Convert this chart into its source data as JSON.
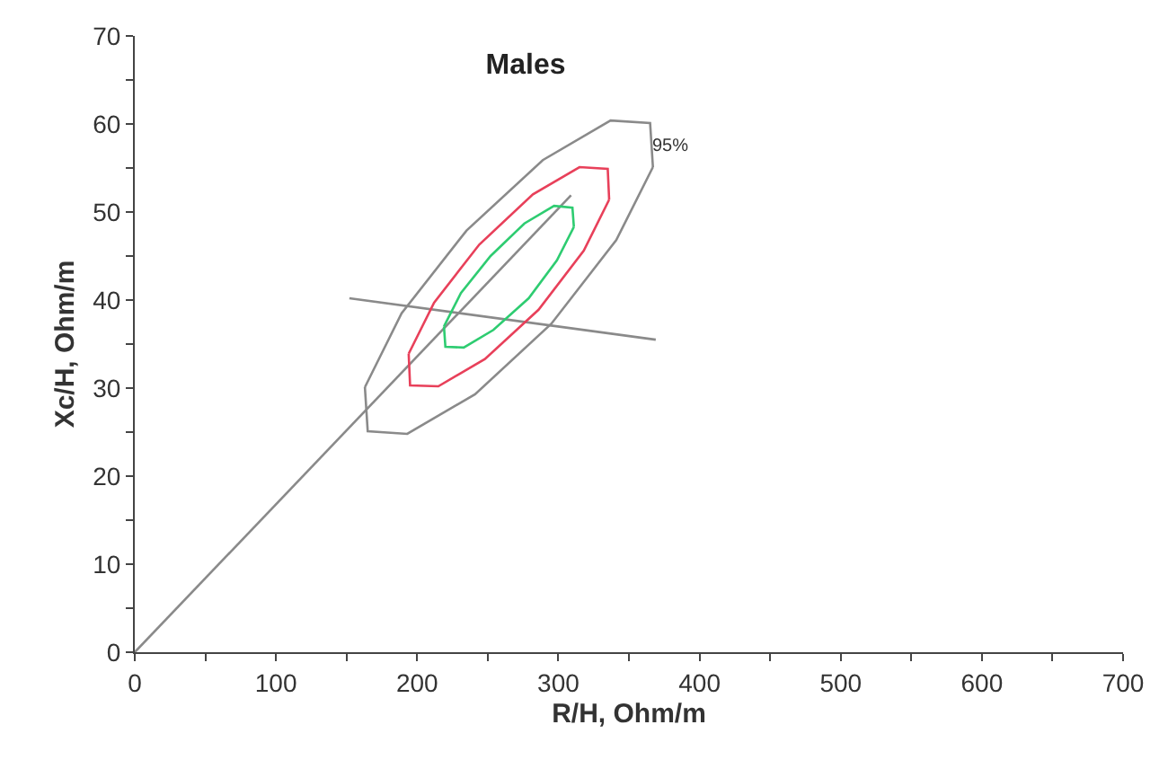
{
  "chart_data": {
    "type": "line",
    "title": "Males",
    "xlabel": "R/H, Ohm/m",
    "ylabel": "Xc/H, Ohm/m",
    "xlim": [
      0,
      700
    ],
    "ylim": [
      0,
      70
    ],
    "xticks": [
      0,
      {
        "value": 50,
        "label": null
      },
      100,
      {
        "value": 150,
        "label": null
      },
      200,
      {
        "value": 250,
        "label": null
      },
      300,
      {
        "value": 350,
        "label": null
      },
      400,
      {
        "value": 450,
        "label": null
      },
      500,
      {
        "value": 550,
        "label": null
      },
      600,
      {
        "value": 650,
        "label": null
      },
      700
    ],
    "yticks": [
      0,
      {
        "value": 5,
        "label": null
      },
      10,
      {
        "value": 15,
        "label": null
      },
      20,
      {
        "value": 25,
        "label": null
      },
      30,
      {
        "value": 35,
        "label": null
      },
      40,
      {
        "value": 45,
        "label": null
      },
      50,
      {
        "value": 55,
        "label": null
      },
      60,
      {
        "value": 65,
        "label": null
      },
      70
    ],
    "marker": "none",
    "line_style": "solid",
    "series": [
      {
        "color": "#8a8a8a",
        "x": [
          0,
          309
        ],
        "values": [
          0,
          51.9
        ]
      },
      {
        "color": "#8a8a8a",
        "x": [
          152,
          369
        ],
        "values": [
          40.2,
          35.5
        ]
      },
      {
        "color": "#8a8a8a",
        "x": [
          163,
          189,
          235,
          289,
          337,
          365,
          367
        ],
        "values": [
          30.1,
          38.5,
          47.9,
          55.9,
          60.4,
          60.1,
          55.1
        ]
      },
      {
        "color": "#8a8a8a",
        "x": [
          163,
          165,
          193,
          241,
          295,
          341,
          367
        ],
        "values": [
          30.1,
          25.1,
          24.8,
          29.3,
          37.3,
          46.8,
          55.1
        ]
      },
      {
        "color": "#e8405a",
        "x": [
          194,
          212,
          244,
          282,
          315,
          335,
          336
        ],
        "values": [
          33.9,
          39.7,
          46.3,
          52,
          55.1,
          54.9,
          51.4
        ]
      },
      {
        "color": "#e8405a",
        "x": [
          194,
          195,
          215,
          248,
          286,
          318,
          336
        ],
        "values": [
          33.9,
          30.3,
          30.2,
          33.3,
          38.9,
          45.6,
          51.4
        ]
      },
      {
        "color": "#2ecc71",
        "x": [
          219,
          231,
          252,
          276,
          297,
          310,
          311
        ],
        "values": [
          37,
          40.8,
          45,
          48.7,
          50.7,
          50.5,
          48.3
        ]
      },
      {
        "color": "#2ecc71",
        "x": [
          219,
          220,
          233,
          254,
          279,
          299,
          311
        ],
        "values": [
          37,
          34.7,
          34.6,
          36.6,
          40.2,
          44.5,
          48.3
        ]
      }
    ],
    "annotations": [
      "95%"
    ]
  }
}
